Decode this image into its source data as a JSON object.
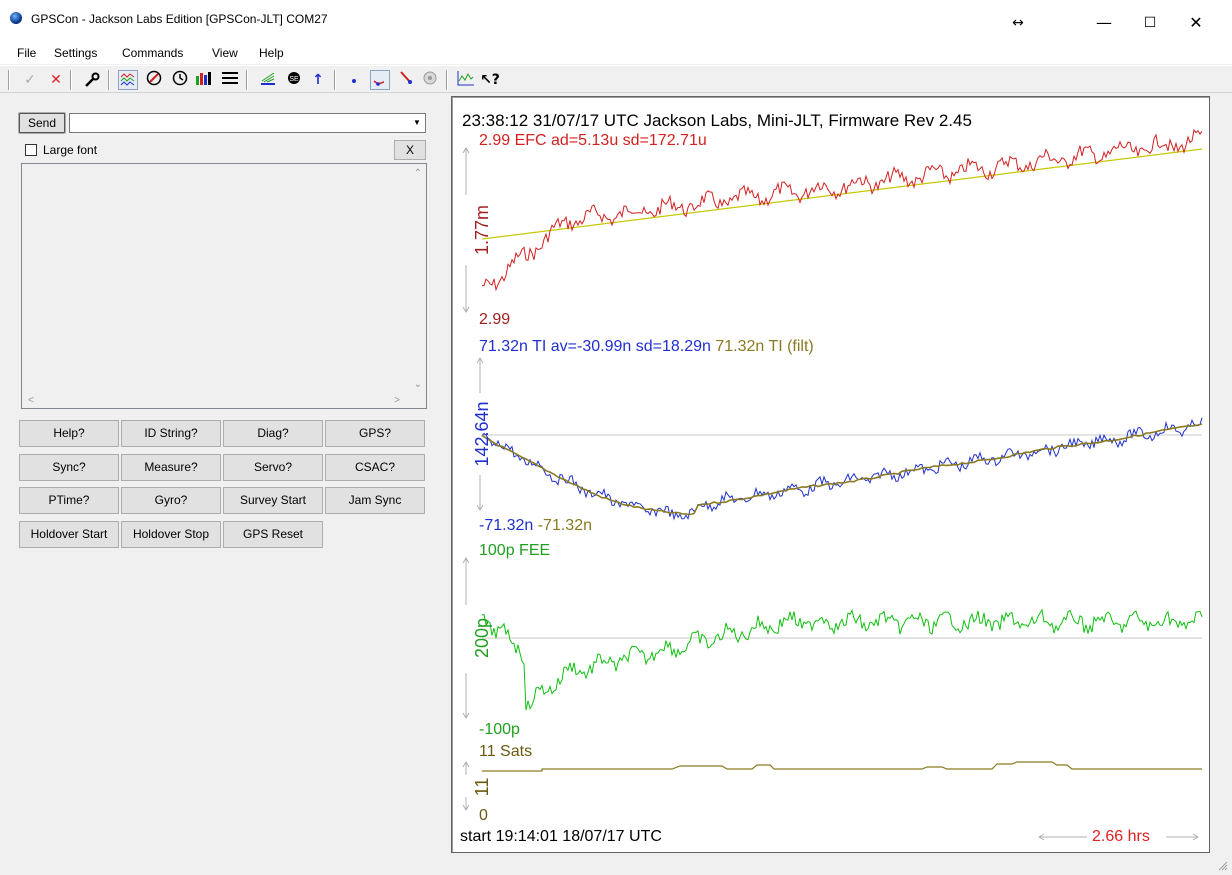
{
  "window": {
    "title": "GPSCon - Jackson Labs Edition [GPSCon-JLT] COM27",
    "resize_glyph": "↔",
    "min_glyph": "—",
    "max_glyph": "☐",
    "close_glyph": "✕"
  },
  "menu": [
    "File",
    "Settings",
    "Commands",
    "View",
    "Help"
  ],
  "toolbar": {
    "icons": [
      "check-icon",
      "cross-icon",
      "wrench-icon",
      "graph-icon",
      "target-icon",
      "clock-icon",
      "signal-icon",
      "list-icon",
      "antenna-icon",
      "satellite-icon",
      "up-arrow-icon",
      "dot-icon",
      "line-dot-icon",
      "line-slope-icon",
      "disc-icon",
      "chart-icon",
      "help-cursor-icon"
    ]
  },
  "command": {
    "send_label": "Send",
    "input_value": "",
    "large_font_label": "Large font",
    "clear_label": "X",
    "large_font_checked": false
  },
  "buttons": [
    [
      "Help?",
      "ID String?",
      "Diag?",
      "GPS?"
    ],
    [
      "Sync?",
      "Measure?",
      "Servo?",
      "CSAC?"
    ],
    [
      "PTime?",
      "Gyro?",
      "Survey Start",
      "Jam Sync"
    ],
    [
      "Holdover Start",
      "Holdover Stop",
      "GPS Reset"
    ]
  ],
  "graph": {
    "header": "23:38:12 31/07/17 UTC Jackson Labs, Mini-JLT, Firmware Rev 2.45",
    "efc": {
      "top_label": "2.99 EFC  ad=5.13u sd=172.71u",
      "axis_label": "1.77m",
      "bottom_label": "2.99",
      "color": "#d42020",
      "trend_color": "#c8c800"
    },
    "ti": {
      "top_label_a": "71.32n TI av=-30.99n sd=18.29n",
      "top_label_b": "71.32n TI (filt)",
      "axis_label": "142.64n",
      "bottom_label_a": "-71.32n",
      "bottom_label_b": "-71.32n",
      "color": "#2030d0",
      "filt_color": "#8a7a20"
    },
    "fee": {
      "top_label": "100p FEE",
      "axis_label": "200p",
      "bottom_label": "-100p",
      "color": "#10c010"
    },
    "sats": {
      "top_label": "11 Sats",
      "axis_label": "11",
      "bottom_label": "0",
      "color": "#8a7a20"
    },
    "footer_start": "start 19:14:01 18/07/17 UTC",
    "footer_duration": "2.66 hrs",
    "duration_color": "#e02020"
  }
}
